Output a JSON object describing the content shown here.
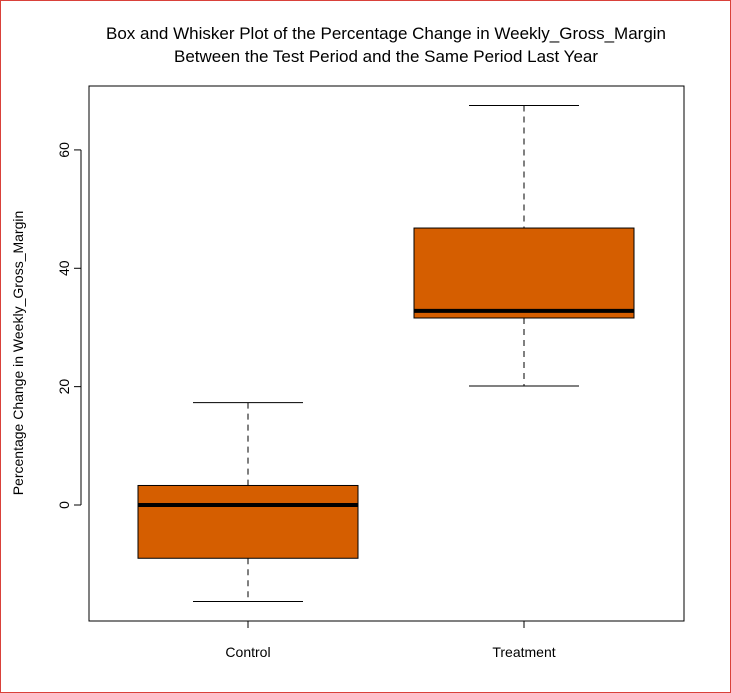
{
  "chart_data": {
    "type": "box",
    "title": [
      "Box and Whisker Plot of the Percentage Change in Weekly_Gross_Margin",
      "Between the Test Period and the Same Period Last Year"
    ],
    "xlabel": "",
    "ylabel": "Percentage Change in Weekly_Gross_Margin",
    "categories": [
      "Control",
      "Treatment"
    ],
    "yticks": [
      0,
      20,
      40,
      60
    ],
    "ylim": [
      -19.6,
      70.8
    ],
    "grid": false,
    "colors": {
      "box_fill": "#d55e00",
      "stroke": "#000000"
    },
    "boxes": [
      {
        "name": "Control",
        "min": -16.3,
        "q1": -9.0,
        "median": 0.0,
        "q3": 3.3,
        "max": 17.3
      },
      {
        "name": "Treatment",
        "min": 20.1,
        "q1": 31.6,
        "median": 32.8,
        "q3": 46.8,
        "max": 67.5
      }
    ]
  }
}
